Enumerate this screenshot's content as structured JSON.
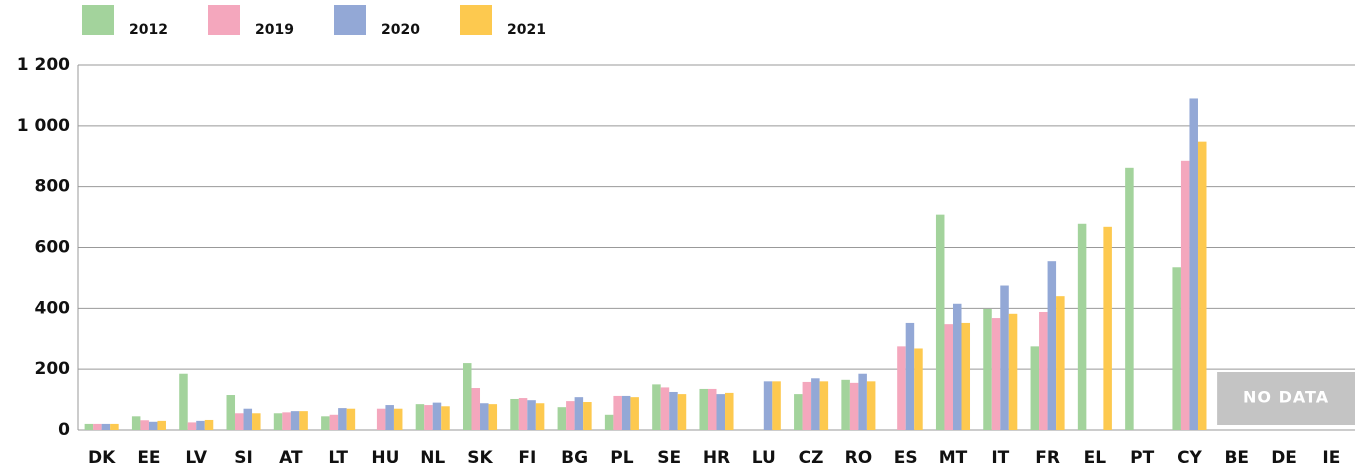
{
  "chart_data": {
    "type": "bar",
    "categories": [
      "DK",
      "EE",
      "LV",
      "SI",
      "AT",
      "LT",
      "HU",
      "NL",
      "SK",
      "FI",
      "BG",
      "PL",
      "SE",
      "HR",
      "LU",
      "CZ",
      "RO",
      "ES",
      "MT",
      "IT",
      "FR",
      "EL",
      "PT",
      "CY",
      "BE",
      "DE",
      "IE"
    ],
    "series": [
      {
        "name": "2012",
        "color": "#a3d39c",
        "values": [
          20,
          45,
          185,
          115,
          55,
          45,
          null,
          85,
          220,
          102,
          75,
          50,
          150,
          135,
          null,
          118,
          165,
          null,
          708,
          398,
          275,
          678,
          862,
          535,
          null,
          null,
          null
        ]
      },
      {
        "name": "2019",
        "color": "#f4a7bd",
        "values": [
          20,
          32,
          25,
          55,
          58,
          50,
          70,
          82,
          138,
          105,
          95,
          112,
          140,
          135,
          null,
          158,
          155,
          275,
          348,
          368,
          388,
          null,
          null,
          885,
          null,
          null,
          null
        ]
      },
      {
        "name": "2020",
        "color": "#93a8d6",
        "values": [
          20,
          27,
          30,
          70,
          62,
          72,
          82,
          90,
          88,
          98,
          108,
          112,
          125,
          118,
          160,
          170,
          185,
          352,
          415,
          475,
          555,
          null,
          null,
          1090,
          null,
          null,
          null
        ]
      },
      {
        "name": "2021",
        "color": "#fdc94f",
        "values": [
          20,
          30,
          33,
          55,
          62,
          70,
          70,
          78,
          85,
          88,
          92,
          108,
          118,
          122,
          160,
          160,
          160,
          268,
          352,
          382,
          440,
          668,
          null,
          948,
          null,
          null,
          null
        ]
      }
    ],
    "ylim": [
      0,
      1200
    ],
    "yticks": [
      0,
      200,
      400,
      600,
      800,
      {
        "value": 1000,
        "label": "1 000"
      },
      {
        "value": 1200,
        "label": "1 200"
      }
    ],
    "grid": true,
    "annotation": "NO DATA"
  }
}
